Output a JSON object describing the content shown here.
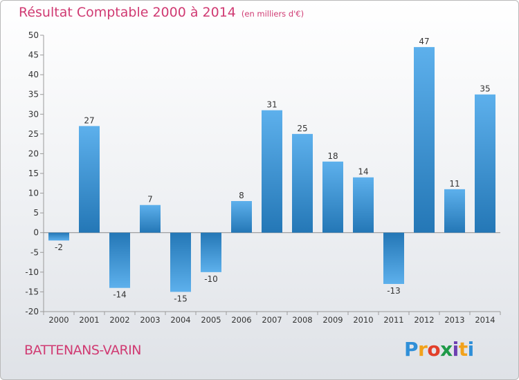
{
  "title": "Résultat Comptable 2000 à 2014",
  "unit": "(en milliers d'€)",
  "city": "BATTENANS-VARIN",
  "brand": {
    "p": "P",
    "r": "r",
    "o": "o",
    "x": "x",
    "i1": "i",
    "t": "t",
    "i2": "i"
  },
  "colors": {
    "title": "#d03a72",
    "bar_top": "#5db0ec",
    "bar_bottom": "#2477b6"
  },
  "chart_data": {
    "type": "bar",
    "title": "Résultat Comptable 2000 à 2014",
    "xlabel": "",
    "ylabel": "",
    "ylim": [
      -20,
      50
    ],
    "yticks": [
      -20,
      -15,
      -10,
      -5,
      0,
      5,
      10,
      15,
      20,
      25,
      30,
      35,
      40,
      45,
      50
    ],
    "grid": false,
    "categories": [
      "2000",
      "2001",
      "2002",
      "2003",
      "2004",
      "2005",
      "2006",
      "2007",
      "2008",
      "2009",
      "2010",
      "2011",
      "2012",
      "2013",
      "2014"
    ],
    "values": [
      -2,
      27,
      -14,
      7,
      -15,
      -10,
      8,
      31,
      25,
      18,
      14,
      -13,
      47,
      11,
      35
    ]
  }
}
